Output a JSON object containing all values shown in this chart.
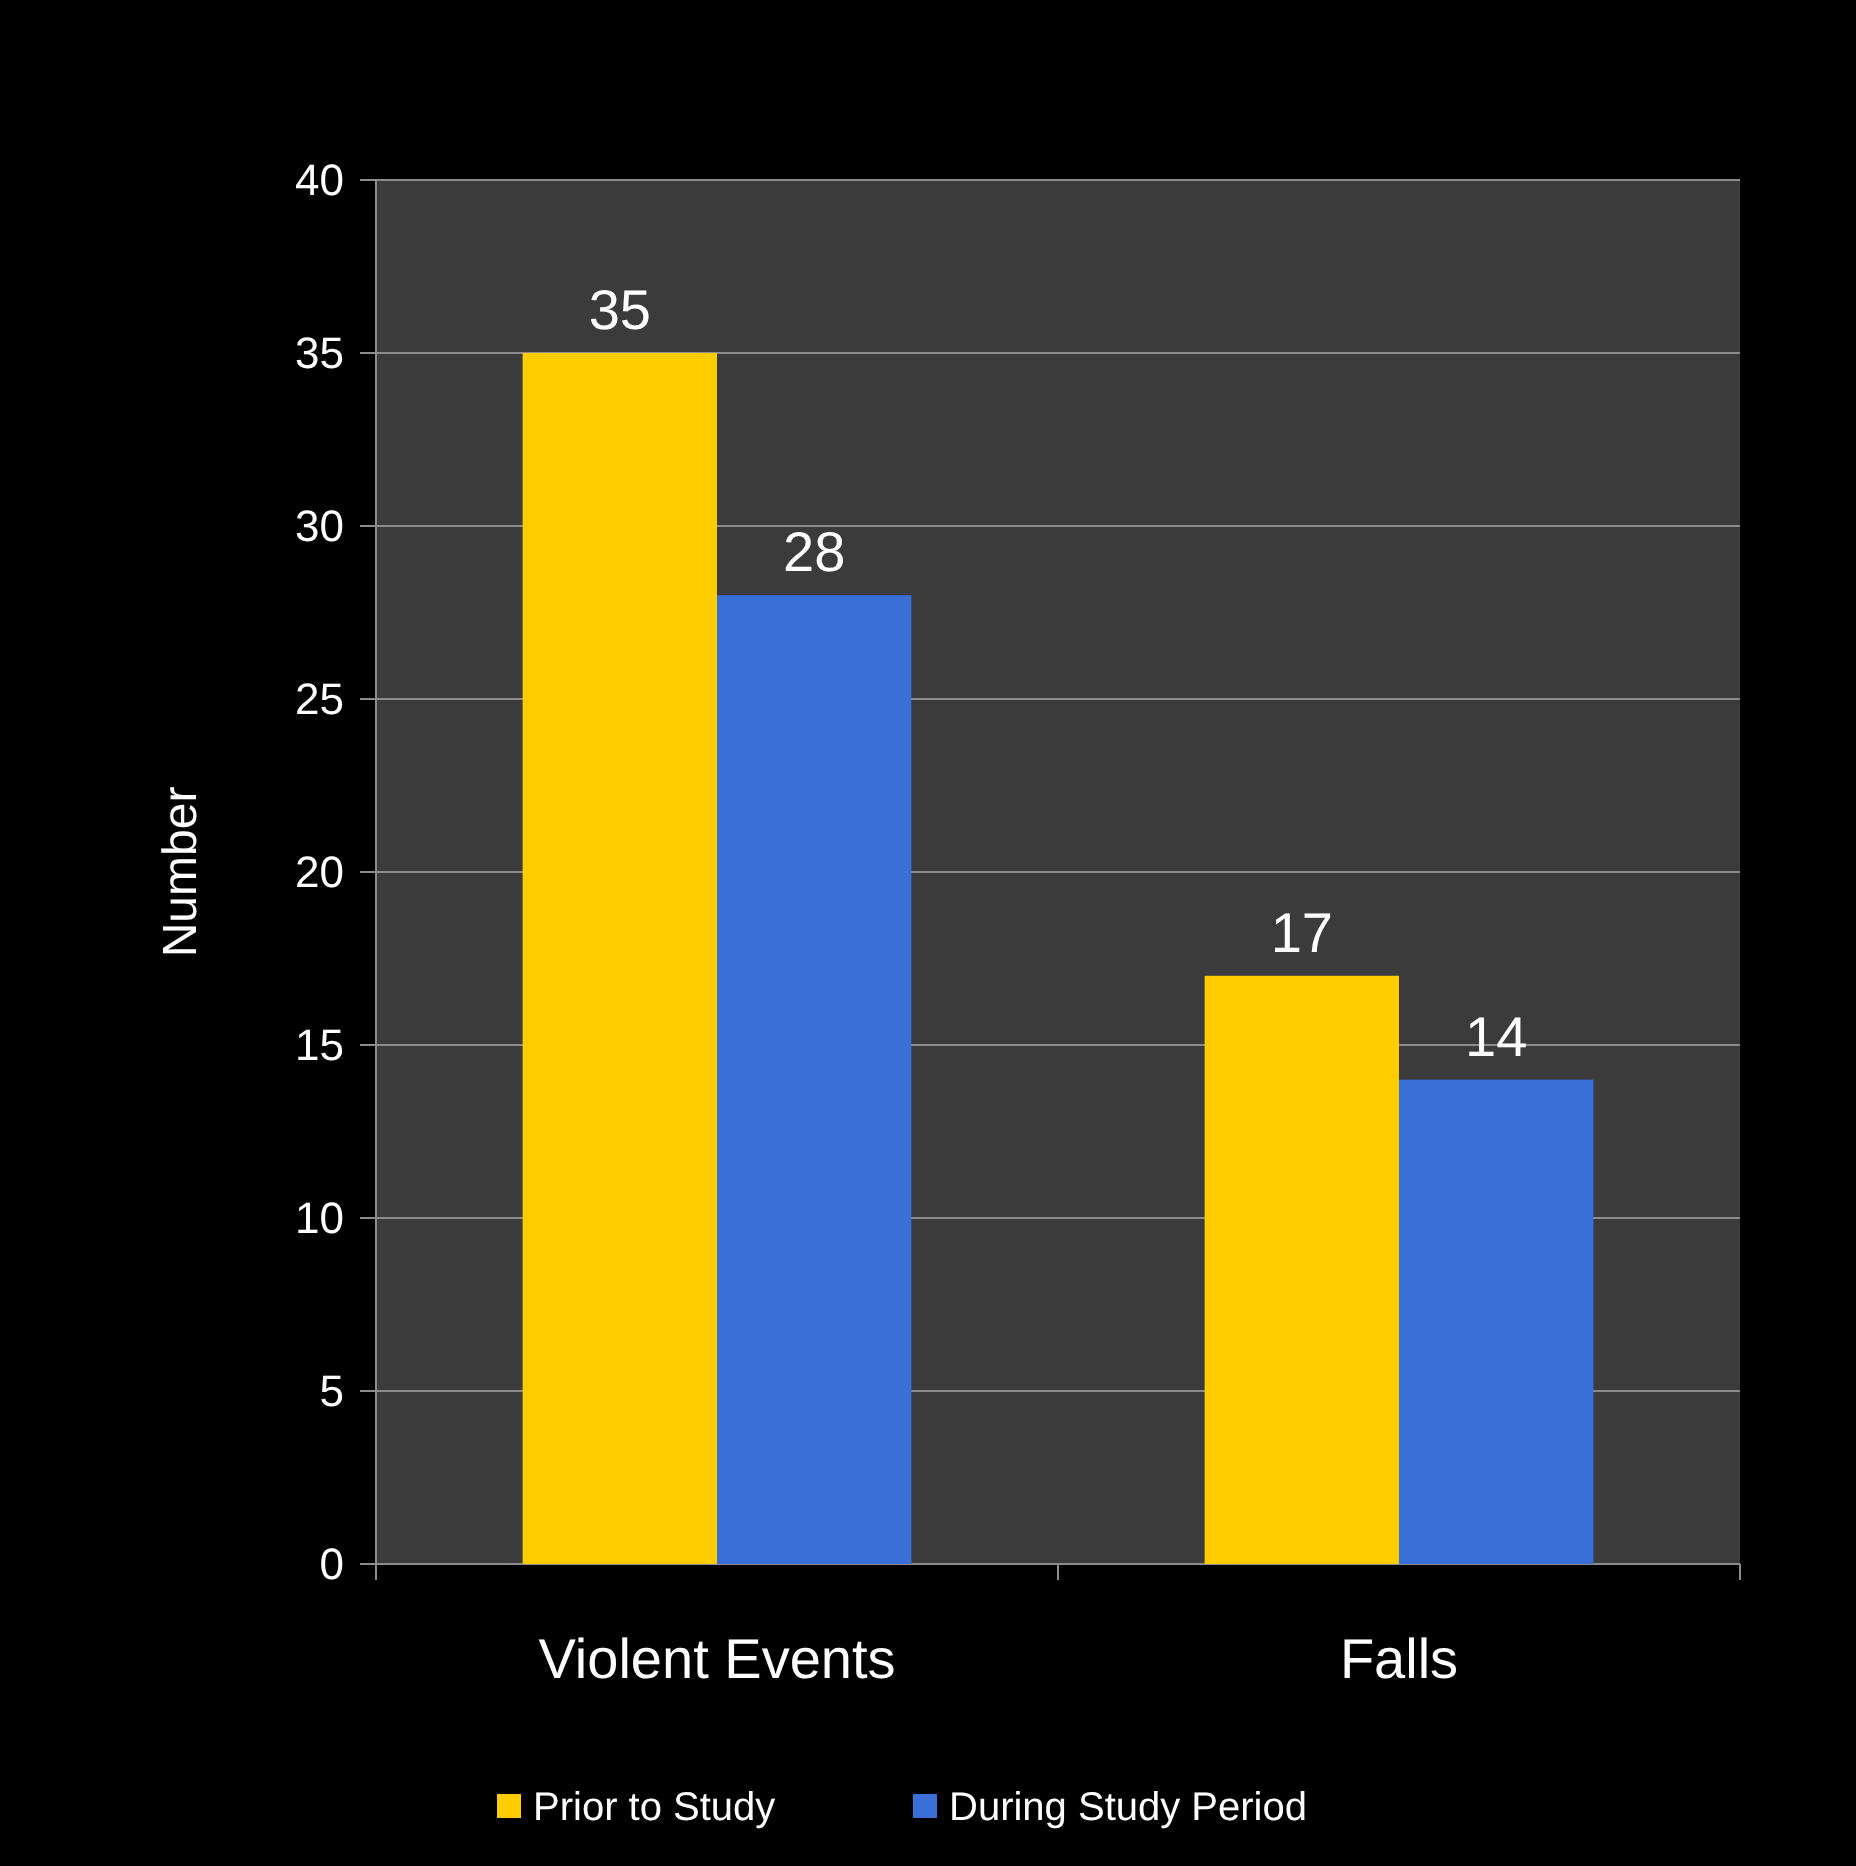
{
  "chart_data": {
    "type": "bar",
    "ylabel": "Number",
    "categories": [
      "Violent Events",
      "Falls"
    ],
    "series": [
      {
        "name": "Prior to Study",
        "color": "#ffcc00",
        "values": [
          35,
          17
        ]
      },
      {
        "name": "During Study Period",
        "color": "#3a6fd8",
        "values": [
          28,
          14
        ]
      }
    ],
    "ylim": [
      0,
      40
    ],
    "yticks": [
      0,
      5,
      10,
      15,
      20,
      25,
      30,
      35,
      40
    ],
    "grid": "y",
    "legend": "bottom",
    "data_labels": true
  }
}
